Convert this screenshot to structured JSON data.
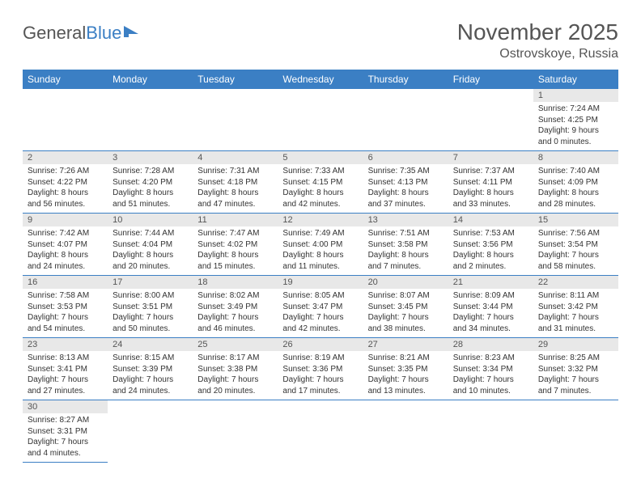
{
  "logo": {
    "text1": "General",
    "text2": "Blue"
  },
  "title": "November 2025",
  "subtitle": "Ostrovskoye, Russia",
  "colors": {
    "header_bg": "#3b7fc4",
    "daynum_bg": "#e8e8e8",
    "border": "#3b7fc4"
  },
  "days_of_week": [
    "Sunday",
    "Monday",
    "Tuesday",
    "Wednesday",
    "Thursday",
    "Friday",
    "Saturday"
  ],
  "weeks": [
    [
      null,
      null,
      null,
      null,
      null,
      null,
      {
        "n": "1",
        "sunrise": "Sunrise: 7:24 AM",
        "sunset": "Sunset: 4:25 PM",
        "daylight": "Daylight: 9 hours and 0 minutes."
      }
    ],
    [
      {
        "n": "2",
        "sunrise": "Sunrise: 7:26 AM",
        "sunset": "Sunset: 4:22 PM",
        "daylight": "Daylight: 8 hours and 56 minutes."
      },
      {
        "n": "3",
        "sunrise": "Sunrise: 7:28 AM",
        "sunset": "Sunset: 4:20 PM",
        "daylight": "Daylight: 8 hours and 51 minutes."
      },
      {
        "n": "4",
        "sunrise": "Sunrise: 7:31 AM",
        "sunset": "Sunset: 4:18 PM",
        "daylight": "Daylight: 8 hours and 47 minutes."
      },
      {
        "n": "5",
        "sunrise": "Sunrise: 7:33 AM",
        "sunset": "Sunset: 4:15 PM",
        "daylight": "Daylight: 8 hours and 42 minutes."
      },
      {
        "n": "6",
        "sunrise": "Sunrise: 7:35 AM",
        "sunset": "Sunset: 4:13 PM",
        "daylight": "Daylight: 8 hours and 37 minutes."
      },
      {
        "n": "7",
        "sunrise": "Sunrise: 7:37 AM",
        "sunset": "Sunset: 4:11 PM",
        "daylight": "Daylight: 8 hours and 33 minutes."
      },
      {
        "n": "8",
        "sunrise": "Sunrise: 7:40 AM",
        "sunset": "Sunset: 4:09 PM",
        "daylight": "Daylight: 8 hours and 28 minutes."
      }
    ],
    [
      {
        "n": "9",
        "sunrise": "Sunrise: 7:42 AM",
        "sunset": "Sunset: 4:07 PM",
        "daylight": "Daylight: 8 hours and 24 minutes."
      },
      {
        "n": "10",
        "sunrise": "Sunrise: 7:44 AM",
        "sunset": "Sunset: 4:04 PM",
        "daylight": "Daylight: 8 hours and 20 minutes."
      },
      {
        "n": "11",
        "sunrise": "Sunrise: 7:47 AM",
        "sunset": "Sunset: 4:02 PM",
        "daylight": "Daylight: 8 hours and 15 minutes."
      },
      {
        "n": "12",
        "sunrise": "Sunrise: 7:49 AM",
        "sunset": "Sunset: 4:00 PM",
        "daylight": "Daylight: 8 hours and 11 minutes."
      },
      {
        "n": "13",
        "sunrise": "Sunrise: 7:51 AM",
        "sunset": "Sunset: 3:58 PM",
        "daylight": "Daylight: 8 hours and 7 minutes."
      },
      {
        "n": "14",
        "sunrise": "Sunrise: 7:53 AM",
        "sunset": "Sunset: 3:56 PM",
        "daylight": "Daylight: 8 hours and 2 minutes."
      },
      {
        "n": "15",
        "sunrise": "Sunrise: 7:56 AM",
        "sunset": "Sunset: 3:54 PM",
        "daylight": "Daylight: 7 hours and 58 minutes."
      }
    ],
    [
      {
        "n": "16",
        "sunrise": "Sunrise: 7:58 AM",
        "sunset": "Sunset: 3:53 PM",
        "daylight": "Daylight: 7 hours and 54 minutes."
      },
      {
        "n": "17",
        "sunrise": "Sunrise: 8:00 AM",
        "sunset": "Sunset: 3:51 PM",
        "daylight": "Daylight: 7 hours and 50 minutes."
      },
      {
        "n": "18",
        "sunrise": "Sunrise: 8:02 AM",
        "sunset": "Sunset: 3:49 PM",
        "daylight": "Daylight: 7 hours and 46 minutes."
      },
      {
        "n": "19",
        "sunrise": "Sunrise: 8:05 AM",
        "sunset": "Sunset: 3:47 PM",
        "daylight": "Daylight: 7 hours and 42 minutes."
      },
      {
        "n": "20",
        "sunrise": "Sunrise: 8:07 AM",
        "sunset": "Sunset: 3:45 PM",
        "daylight": "Daylight: 7 hours and 38 minutes."
      },
      {
        "n": "21",
        "sunrise": "Sunrise: 8:09 AM",
        "sunset": "Sunset: 3:44 PM",
        "daylight": "Daylight: 7 hours and 34 minutes."
      },
      {
        "n": "22",
        "sunrise": "Sunrise: 8:11 AM",
        "sunset": "Sunset: 3:42 PM",
        "daylight": "Daylight: 7 hours and 31 minutes."
      }
    ],
    [
      {
        "n": "23",
        "sunrise": "Sunrise: 8:13 AM",
        "sunset": "Sunset: 3:41 PM",
        "daylight": "Daylight: 7 hours and 27 minutes."
      },
      {
        "n": "24",
        "sunrise": "Sunrise: 8:15 AM",
        "sunset": "Sunset: 3:39 PM",
        "daylight": "Daylight: 7 hours and 24 minutes."
      },
      {
        "n": "25",
        "sunrise": "Sunrise: 8:17 AM",
        "sunset": "Sunset: 3:38 PM",
        "daylight": "Daylight: 7 hours and 20 minutes."
      },
      {
        "n": "26",
        "sunrise": "Sunrise: 8:19 AM",
        "sunset": "Sunset: 3:36 PM",
        "daylight": "Daylight: 7 hours and 17 minutes."
      },
      {
        "n": "27",
        "sunrise": "Sunrise: 8:21 AM",
        "sunset": "Sunset: 3:35 PM",
        "daylight": "Daylight: 7 hours and 13 minutes."
      },
      {
        "n": "28",
        "sunrise": "Sunrise: 8:23 AM",
        "sunset": "Sunset: 3:34 PM",
        "daylight": "Daylight: 7 hours and 10 minutes."
      },
      {
        "n": "29",
        "sunrise": "Sunrise: 8:25 AM",
        "sunset": "Sunset: 3:32 PM",
        "daylight": "Daylight: 7 hours and 7 minutes."
      }
    ],
    [
      {
        "n": "30",
        "sunrise": "Sunrise: 8:27 AM",
        "sunset": "Sunset: 3:31 PM",
        "daylight": "Daylight: 7 hours and 4 minutes."
      },
      null,
      null,
      null,
      null,
      null,
      null
    ]
  ]
}
